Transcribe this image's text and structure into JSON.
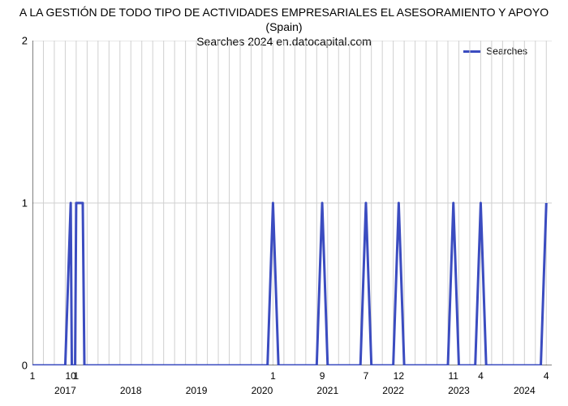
{
  "chart": {
    "type": "line",
    "title_line1": "A LA GESTIÓN DE TODO TIPO DE ACTIVIDADES EMPRESARIALES EL ASESORAMIENTO Y APOYO (Spain)",
    "title_line2": "Searches 2024 en.datocapital.com",
    "title_fontsize": 14,
    "background_color": "#ffffff",
    "grid_color": "#d0d0d0",
    "axis_color": "#000000",
    "line_color": "#3b4cc0",
    "line_width": 3,
    "legend_label": "Searches",
    "ylim": [
      0,
      2
    ],
    "yticks": [
      0,
      1,
      2
    ],
    "x_domain": [
      0,
      95
    ],
    "x_gridlines": [
      0,
      2,
      4,
      6,
      8,
      10,
      12,
      14,
      16,
      18,
      20,
      22,
      24,
      26,
      28,
      30,
      32,
      34,
      36,
      38,
      40,
      42,
      44,
      46,
      48,
      50,
      52,
      54,
      56,
      58,
      60,
      62,
      64,
      66,
      68,
      70,
      72,
      74,
      76,
      78,
      80,
      82,
      84,
      86,
      88,
      90,
      92,
      94
    ],
    "x_tick_labels": [
      {
        "x": 0,
        "label": "1"
      },
      {
        "x": 7,
        "label": "10"
      },
      {
        "x": 8,
        "label": "1"
      },
      {
        "x": 44,
        "label": "1"
      },
      {
        "x": 53,
        "label": "9"
      },
      {
        "x": 61,
        "label": "7"
      },
      {
        "x": 67,
        "label": "12"
      },
      {
        "x": 77,
        "label": "11"
      },
      {
        "x": 82,
        "label": "4"
      },
      {
        "x": 94,
        "label": "4"
      }
    ],
    "x_year_labels": [
      {
        "x": 6,
        "label": "2017"
      },
      {
        "x": 18,
        "label": "2018"
      },
      {
        "x": 30,
        "label": "2019"
      },
      {
        "x": 42,
        "label": "2020"
      },
      {
        "x": 54,
        "label": "2021"
      },
      {
        "x": 66,
        "label": "2022"
      },
      {
        "x": 78,
        "label": "2023"
      },
      {
        "x": 90,
        "label": "2024"
      }
    ],
    "series_points": [
      {
        "x": 0,
        "y": 0
      },
      {
        "x": 6,
        "y": 0
      },
      {
        "x": 7,
        "y": 1
      },
      {
        "x": 7.2,
        "y": 0
      },
      {
        "x": 7.8,
        "y": 0
      },
      {
        "x": 8,
        "y": 1
      },
      {
        "x": 9.2,
        "y": 1
      },
      {
        "x": 9.5,
        "y": 0
      },
      {
        "x": 43,
        "y": 0
      },
      {
        "x": 44,
        "y": 1
      },
      {
        "x": 45,
        "y": 0
      },
      {
        "x": 52,
        "y": 0
      },
      {
        "x": 53,
        "y": 1
      },
      {
        "x": 54,
        "y": 0
      },
      {
        "x": 60,
        "y": 0
      },
      {
        "x": 61,
        "y": 1
      },
      {
        "x": 62,
        "y": 0
      },
      {
        "x": 66,
        "y": 0
      },
      {
        "x": 67,
        "y": 1
      },
      {
        "x": 68,
        "y": 0
      },
      {
        "x": 76,
        "y": 0
      },
      {
        "x": 77,
        "y": 1
      },
      {
        "x": 78,
        "y": 0
      },
      {
        "x": 81,
        "y": 0
      },
      {
        "x": 82,
        "y": 1
      },
      {
        "x": 83,
        "y": 0
      },
      {
        "x": 93,
        "y": 0
      },
      {
        "x": 94,
        "y": 1
      },
      {
        "x": 94,
        "y": 1
      }
    ]
  }
}
